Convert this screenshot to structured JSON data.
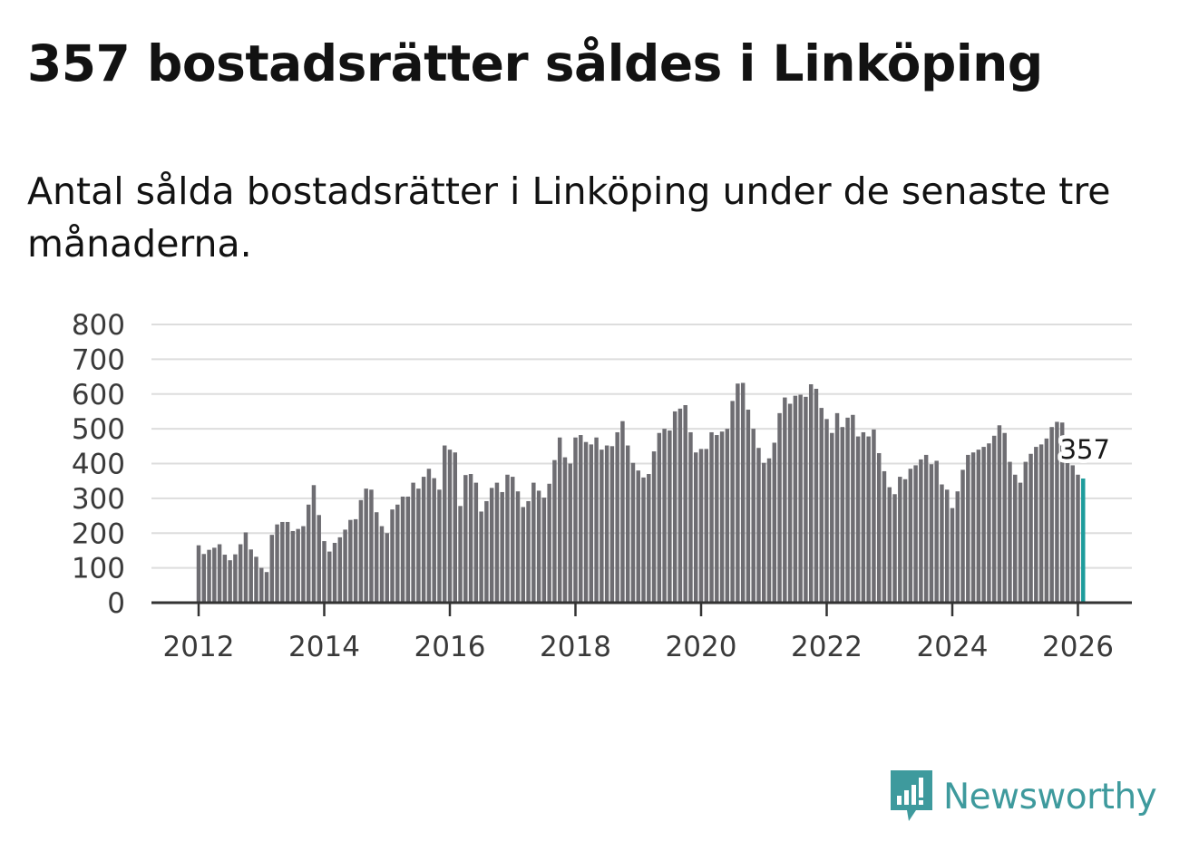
{
  "chart_data": {
    "type": "bar",
    "title": "357 bostadsrätter såldes i Linköping",
    "subtitle": "Antal sålda bostadsrätter i Linköping under de senaste tre månaderna.",
    "xlabel": "",
    "ylabel": "",
    "ylim": [
      0,
      800
    ],
    "yticks": [
      "0",
      "100",
      "200",
      "300",
      "400",
      "500",
      "600",
      "700",
      "800"
    ],
    "xticks": [
      "2012",
      "2014",
      "2016",
      "2018",
      "2020",
      "2022",
      "2024",
      "2026"
    ],
    "x_start": "2012-01",
    "x_end": "2026-01",
    "grid": true,
    "bar_color": "#6e6d72",
    "highlight_color": "#1e9c9c",
    "highlight_label": "357",
    "series": [
      {
        "name": "Antal sålda bostadsrätter",
        "values": [
          165,
          140,
          152,
          158,
          168,
          138,
          122,
          139,
          168,
          202,
          153,
          132,
          100,
          88,
          195,
          225,
          232,
          232,
          206,
          212,
          220,
          282,
          338,
          252,
          177,
          147,
          172,
          188,
          210,
          238,
          240,
          295,
          328,
          325,
          260,
          220,
          200,
          268,
          282,
          305,
          305,
          345,
          328,
          362,
          385,
          358,
          325,
          452,
          440,
          432,
          278,
          367,
          370,
          345,
          262,
          292,
          330,
          345,
          318,
          368,
          362,
          320,
          275,
          292,
          345,
          322,
          302,
          342,
          410,
          475,
          418,
          400,
          475,
          482,
          462,
          455,
          475,
          440,
          452,
          450,
          490,
          522,
          452,
          402,
          380,
          360,
          370,
          435,
          488,
          500,
          495,
          550,
          558,
          568,
          490,
          432,
          442,
          442,
          490,
          482,
          492,
          500,
          580,
          630,
          632,
          555,
          500,
          445,
          402,
          415,
          460,
          545,
          590,
          572,
          595,
          598,
          592,
          628,
          615,
          560,
          528,
          488,
          545,
          505,
          532,
          540,
          478,
          490,
          478,
          498,
          430,
          378,
          332,
          312,
          362,
          355,
          385,
          395,
          412,
          425,
          398,
          408,
          340,
          325,
          272,
          320,
          382,
          425,
          432,
          440,
          448,
          458,
          480,
          510,
          488,
          405,
          368,
          345,
          405,
          428,
          448,
          455,
          472,
          505,
          520,
          518,
          412,
          395,
          368,
          357
        ]
      }
    ]
  },
  "logo": {
    "text": "Newsworthy",
    "icon": "newsworthy-logo-icon",
    "color": "#3e9a9d"
  }
}
